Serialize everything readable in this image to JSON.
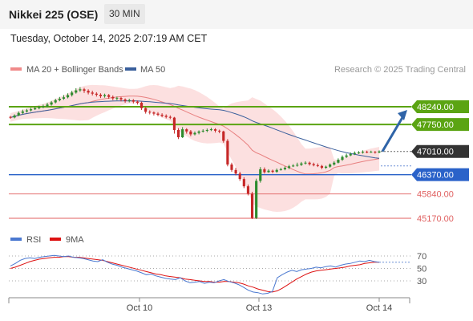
{
  "header": {
    "title": "Nikkei 225 (OSE)",
    "timeframe": "30 MIN",
    "timestamp": "Tuesday, October 14, 2025 2:07:19 AM CET"
  },
  "chart_data": {
    "type": "candlestick",
    "legend": [
      {
        "label": "MA 20 + Bollinger Bands",
        "color": "#f08a8a"
      },
      {
        "label": "MA 50",
        "color": "#3a5f9c"
      }
    ],
    "credit": "Research © 2025 Trading Central",
    "price_levels": [
      {
        "value": 48240,
        "label": "48240.00",
        "kind": "resistance",
        "color": "#5ba413",
        "style": "tag"
      },
      {
        "value": 47750,
        "label": "47750.00",
        "kind": "resistance",
        "color": "#5ba413",
        "style": "tag"
      },
      {
        "value": 47010,
        "label": "47010.00",
        "kind": "last",
        "color": "#333333",
        "style": "tag"
      },
      {
        "value": 46370,
        "label": "46370.00",
        "kind": "pivot",
        "color": "#2a62c9",
        "style": "tag"
      },
      {
        "value": 45840,
        "label": "45840.00",
        "kind": "support",
        "color": "#e06060",
        "style": "text"
      },
      {
        "value": 45170,
        "label": "45170.00",
        "kind": "support",
        "color": "#e06060",
        "style": "text"
      }
    ],
    "forecast_arrow": {
      "from": 47010,
      "to": 48240
    },
    "x_ticks": [
      "Oct 10",
      "Oct 13",
      "Oct 14"
    ],
    "candles": [
      [
        47960,
        47945,
        47990,
        47910
      ],
      [
        47945,
        48000,
        48030,
        47920
      ],
      [
        48000,
        48070,
        48110,
        47980
      ],
      [
        48070,
        48110,
        48160,
        48040
      ],
      [
        48110,
        48140,
        48180,
        48080
      ],
      [
        48140,
        48170,
        48210,
        48110
      ],
      [
        48170,
        48200,
        48250,
        48150
      ],
      [
        48200,
        48230,
        48270,
        48170
      ],
      [
        48230,
        48250,
        48300,
        48200
      ],
      [
        48250,
        48300,
        48350,
        48220
      ],
      [
        48300,
        48360,
        48400,
        48270
      ],
      [
        48360,
        48420,
        48460,
        48330
      ],
      [
        48420,
        48460,
        48510,
        48390
      ],
      [
        48460,
        48500,
        48560,
        48430
      ],
      [
        48500,
        48560,
        48610,
        48470
      ],
      [
        48560,
        48630,
        48680,
        48520
      ],
      [
        48630,
        48690,
        48750,
        48600
      ],
      [
        48690,
        48720,
        48780,
        48650
      ],
      [
        48720,
        48680,
        48760,
        48620
      ],
      [
        48680,
        48630,
        48720,
        48580
      ],
      [
        48630,
        48600,
        48680,
        48550
      ],
      [
        48600,
        48570,
        48640,
        48520
      ],
      [
        48570,
        48530,
        48610,
        48480
      ],
      [
        48530,
        48560,
        48600,
        48490
      ],
      [
        48560,
        48510,
        48590,
        48460
      ],
      [
        48510,
        48470,
        48550,
        48420
      ],
      [
        48470,
        48480,
        48520,
        48420
      ],
      [
        48480,
        48440,
        48510,
        48390
      ],
      [
        48440,
        48400,
        48470,
        48350
      ],
      [
        48400,
        48420,
        48460,
        48360
      ],
      [
        48420,
        48380,
        48450,
        48330
      ],
      [
        48380,
        48350,
        48410,
        48300
      ],
      [
        48350,
        48200,
        48380,
        48150
      ],
      [
        48200,
        48100,
        48230,
        48050
      ],
      [
        48100,
        48080,
        48140,
        48030
      ],
      [
        48080,
        48050,
        48110,
        48000
      ],
      [
        48050,
        48020,
        48090,
        47980
      ],
      [
        48020,
        47990,
        48060,
        47950
      ],
      [
        47990,
        47960,
        48030,
        47920
      ],
      [
        47960,
        47940,
        48000,
        47900
      ],
      [
        47940,
        47600,
        47960,
        47500
      ],
      [
        47600,
        47400,
        47650,
        47350
      ],
      [
        47400,
        47620,
        47680,
        47380
      ],
      [
        47620,
        47560,
        47650,
        47500
      ],
      [
        47560,
        47480,
        47600,
        47430
      ],
      [
        47480,
        47520,
        47560,
        47450
      ],
      [
        47520,
        47560,
        47590,
        47480
      ],
      [
        47560,
        47580,
        47620,
        47530
      ],
      [
        47580,
        47600,
        47640,
        47540
      ],
      [
        47600,
        47620,
        47660,
        47570
      ],
      [
        47620,
        47580,
        47650,
        47530
      ],
      [
        47580,
        47560,
        47610,
        47510
      ],
      [
        47560,
        47300,
        47580,
        47250
      ],
      [
        47300,
        46650,
        47350,
        46600
      ],
      [
        46650,
        46500,
        46700,
        46450
      ],
      [
        46500,
        46400,
        46560,
        46350
      ],
      [
        46400,
        46250,
        46450,
        46200
      ],
      [
        46250,
        46050,
        46300,
        46000
      ],
      [
        46050,
        45850,
        46100,
        45800
      ],
      [
        45850,
        45180,
        45900,
        45150
      ],
      [
        45180,
        46200,
        46260,
        45150
      ],
      [
        46200,
        46520,
        46580,
        46150
      ],
      [
        46520,
        46440,
        46570,
        46400
      ],
      [
        46440,
        46480,
        46520,
        46420
      ],
      [
        46480,
        46450,
        46510,
        46410
      ],
      [
        46450,
        46500,
        46540,
        46420
      ],
      [
        46500,
        46520,
        46560,
        46480
      ],
      [
        46520,
        46560,
        46600,
        46490
      ],
      [
        46560,
        46600,
        46640,
        46520
      ],
      [
        46600,
        46620,
        46660,
        46580
      ],
      [
        46620,
        46640,
        46700,
        46590
      ],
      [
        46640,
        46680,
        46720,
        46610
      ],
      [
        46680,
        46700,
        46740,
        46650
      ],
      [
        46700,
        46660,
        46730,
        46620
      ],
      [
        46660,
        46630,
        46700,
        46600
      ],
      [
        46630,
        46610,
        46680,
        46580
      ],
      [
        46610,
        46560,
        46640,
        46520
      ],
      [
        46560,
        46590,
        46620,
        46530
      ],
      [
        46590,
        46650,
        46680,
        46560
      ],
      [
        46650,
        46700,
        46740,
        46620
      ],
      [
        46700,
        46780,
        46820,
        46680
      ],
      [
        46780,
        46860,
        46900,
        46750
      ],
      [
        46860,
        46900,
        46950,
        46830
      ],
      [
        46900,
        46940,
        46980,
        46880
      ],
      [
        46940,
        46970,
        47010,
        46910
      ],
      [
        46970,
        46980,
        47020,
        46940
      ],
      [
        46980,
        47000,
        47040,
        46950
      ],
      [
        47000,
        46990,
        47030,
        46960
      ],
      [
        46990,
        47000,
        47030,
        46970
      ],
      [
        47000,
        46980,
        47020,
        46950
      ],
      [
        46980,
        47010,
        47040,
        46960
      ]
    ],
    "rsi": {
      "levels": [
        70,
        50,
        30
      ],
      "legend": [
        {
          "label": "RSI",
          "color": "#4a78d0"
        },
        {
          "label": "9MA",
          "color": "#dd1111"
        }
      ],
      "rsi_values": [
        54,
        58,
        63,
        66,
        67,
        66,
        68,
        69,
        70,
        71,
        70,
        69,
        70,
        68,
        67,
        66,
        64,
        62,
        61,
        64,
        60,
        57,
        55,
        52,
        50,
        48,
        46,
        43,
        40,
        41,
        38,
        36,
        34,
        33,
        32,
        35,
        30,
        27,
        28,
        29,
        26,
        28,
        27,
        30,
        32,
        29,
        27,
        24,
        20,
        15,
        12,
        11,
        9,
        10,
        13,
        35,
        40,
        44,
        47,
        45,
        48,
        49,
        50,
        52,
        51,
        53,
        54,
        52,
        55,
        57,
        58,
        60,
        62,
        61,
        63,
        61,
        60
      ],
      "ma_values": [
        50,
        52,
        55,
        58,
        61,
        63,
        65,
        66,
        67,
        68,
        68,
        69,
        69,
        68,
        68,
        67,
        66,
        65,
        64,
        63,
        61,
        59,
        57,
        55,
        53,
        51,
        49,
        47,
        45,
        43,
        41,
        40,
        38,
        37,
        36,
        35,
        33,
        32,
        31,
        30,
        29,
        29,
        28,
        28,
        29,
        29,
        28,
        27,
        25,
        22,
        20,
        17,
        15,
        13,
        12,
        14,
        18,
        23,
        28,
        33,
        37,
        41,
        44,
        46,
        47,
        48,
        49,
        50,
        51,
        52,
        54,
        55,
        56,
        58,
        59,
        60,
        60
      ]
    }
  }
}
